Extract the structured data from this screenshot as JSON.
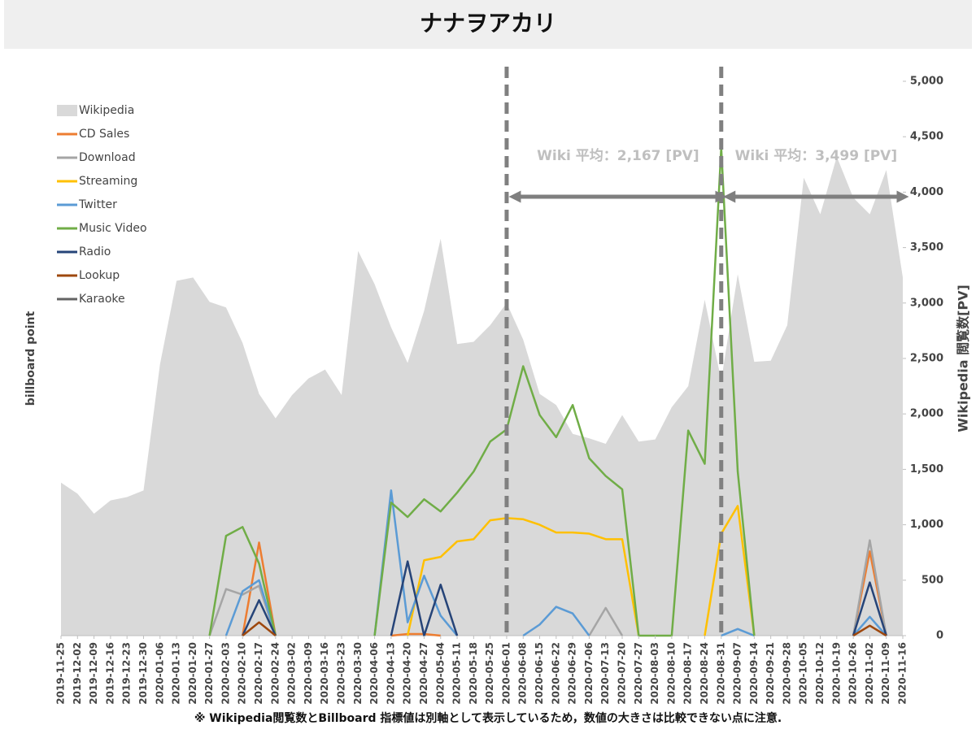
{
  "chart_data": {
    "type": "line",
    "title": "ナナヲアカリ",
    "y_label": "billboard point",
    "y2_label": "Wikipedia 閲覧数[PV]",
    "footnote": "※ Wikipedia閲覧数とBillboard 指標値は別軸として表示しているため，数値の大きさは比較できない点に注意.",
    "categories": [
      "2019-11-25",
      "2019-12-02",
      "2019-12-09",
      "2019-12-16",
      "2019-12-23",
      "2019-12-30",
      "2020-01-06",
      "2020-01-13",
      "2020-01-20",
      "2020-01-27",
      "2020-02-03",
      "2020-02-10",
      "2020-02-17",
      "2020-02-24",
      "2020-03-02",
      "2020-03-09",
      "2020-03-16",
      "2020-03-23",
      "2020-03-30",
      "2020-04-06",
      "2020-04-13",
      "2020-04-20",
      "2020-04-27",
      "2020-05-04",
      "2020-05-11",
      "2020-05-18",
      "2020-05-25",
      "2020-06-01",
      "2020-06-08",
      "2020-06-15",
      "2020-06-22",
      "2020-06-29",
      "2020-07-06",
      "2020-07-13",
      "2020-07-20",
      "2020-07-27",
      "2020-08-03",
      "2020-08-10",
      "2020-08-17",
      "2020-08-24",
      "2020-08-31",
      "2020-09-07",
      "2020-09-14",
      "2020-09-21",
      "2020-09-28",
      "2020-10-05",
      "2020-10-12",
      "2020-10-19",
      "2020-10-26",
      "2020-11-02",
      "2020-11-09",
      "2020-11-16"
    ],
    "ylim": [
      0,
      5000
    ],
    "y2lim": [
      0,
      5000
    ],
    "y2ticks": [
      0,
      500,
      {
        "value": 1000,
        "label": "1,000"
      },
      {
        "value": 1500,
        "label": "1,500"
      },
      {
        "value": 2000,
        "label": "2,000"
      },
      {
        "value": 2500,
        "label": "2,500"
      },
      {
        "value": 3000,
        "label": "3,000"
      },
      {
        "value": 3500,
        "label": "3,500"
      },
      {
        "value": 4000,
        "label": "4,000"
      },
      {
        "value": 4500,
        "label": "4,500"
      },
      {
        "value": 5000,
        "label": "5,000"
      }
    ],
    "series": [
      {
        "name": "Wikipedia",
        "color": "#d9d9d9",
        "kind": "area",
        "axis": "y2",
        "values": [
          1380,
          1280,
          1100,
          1220,
          1250,
          1310,
          2450,
          3200,
          3230,
          3010,
          2960,
          2640,
          2180,
          1960,
          2170,
          2320,
          2400,
          2170,
          3470,
          3170,
          2780,
          2460,
          2930,
          3580,
          2630,
          2650,
          2800,
          3000,
          2670,
          2180,
          2080,
          1820,
          1780,
          1730,
          1990,
          1750,
          1770,
          2060,
          2250,
          3030,
          2300,
          3260,
          2470,
          2480,
          2800,
          4130,
          3800,
          4320,
          3950,
          3800,
          4200,
          3230
        ]
      },
      {
        "name": "CD Sales",
        "color": "#ed7d31",
        "values": [
          null,
          null,
          null,
          null,
          null,
          null,
          null,
          null,
          null,
          null,
          null,
          0,
          840,
          0,
          null,
          null,
          null,
          null,
          null,
          null,
          0,
          15,
          15,
          0,
          null,
          null,
          null,
          null,
          null,
          null,
          null,
          null,
          null,
          null,
          null,
          null,
          null,
          null,
          null,
          null,
          null,
          null,
          null,
          null,
          null,
          null,
          null,
          null,
          0,
          760,
          0,
          null
        ]
      },
      {
        "name": "Download",
        "color": "#a5a5a5",
        "values": [
          null,
          null,
          null,
          null,
          null,
          null,
          null,
          null,
          null,
          0,
          420,
          370,
          450,
          0,
          null,
          null,
          null,
          null,
          null,
          null,
          null,
          null,
          null,
          null,
          null,
          null,
          null,
          null,
          null,
          null,
          null,
          null,
          0,
          250,
          0,
          null,
          null,
          null,
          null,
          null,
          null,
          null,
          null,
          null,
          null,
          null,
          null,
          null,
          0,
          860,
          0,
          null
        ]
      },
      {
        "name": "Streaming",
        "color": "#ffc000",
        "values": [
          null,
          null,
          null,
          null,
          null,
          null,
          null,
          null,
          null,
          null,
          null,
          null,
          null,
          null,
          null,
          null,
          null,
          null,
          null,
          null,
          null,
          0,
          680,
          710,
          850,
          870,
          1040,
          1060,
          1050,
          1000,
          930,
          930,
          920,
          870,
          870,
          0,
          null,
          null,
          null,
          0,
          920,
          1170,
          0,
          null,
          null,
          null,
          null,
          null,
          null,
          null,
          null,
          null
        ]
      },
      {
        "name": "Twitter",
        "color": "#5b9bd5",
        "values": [
          null,
          null,
          null,
          null,
          null,
          null,
          null,
          null,
          null,
          null,
          0,
          400,
          500,
          0,
          null,
          null,
          null,
          null,
          null,
          0,
          1310,
          120,
          540,
          180,
          0,
          null,
          null,
          null,
          0,
          100,
          260,
          200,
          0,
          null,
          null,
          null,
          null,
          null,
          null,
          null,
          0,
          60,
          0,
          null,
          null,
          null,
          null,
          null,
          0,
          170,
          0,
          null
        ]
      },
      {
        "name": "Music Video",
        "color": "#70ad47",
        "values": [
          null,
          null,
          null,
          null,
          null,
          null,
          null,
          null,
          null,
          0,
          900,
          980,
          650,
          0,
          null,
          null,
          null,
          null,
          null,
          0,
          1200,
          1070,
          1230,
          1120,
          1290,
          1480,
          1750,
          1860,
          2430,
          1990,
          1790,
          2080,
          1600,
          1440,
          1320,
          0,
          0,
          0,
          1850,
          1550,
          4400,
          1480,
          0,
          null,
          null,
          null,
          null,
          null,
          null,
          null,
          null,
          null
        ]
      },
      {
        "name": "Radio",
        "color": "#264478",
        "values": [
          null,
          null,
          null,
          null,
          null,
          null,
          null,
          null,
          null,
          null,
          null,
          0,
          320,
          0,
          null,
          null,
          null,
          null,
          null,
          null,
          0,
          670,
          0,
          460,
          0,
          null,
          null,
          null,
          null,
          null,
          null,
          null,
          null,
          null,
          null,
          null,
          null,
          null,
          null,
          null,
          null,
          null,
          null,
          null,
          null,
          null,
          null,
          null,
          0,
          480,
          0,
          null
        ]
      },
      {
        "name": "Lookup",
        "color": "#9e480e",
        "values": [
          null,
          null,
          null,
          null,
          null,
          null,
          null,
          null,
          null,
          null,
          null,
          0,
          120,
          0,
          null,
          null,
          null,
          null,
          null,
          null,
          null,
          null,
          null,
          null,
          null,
          null,
          null,
          null,
          null,
          null,
          null,
          null,
          null,
          null,
          null,
          null,
          null,
          null,
          null,
          null,
          null,
          null,
          null,
          null,
          null,
          null,
          null,
          null,
          0,
          90,
          0,
          null
        ]
      },
      {
        "name": "Karaoke",
        "color": "#636363",
        "values": [
          null,
          null,
          null,
          null,
          null,
          null,
          null,
          null,
          null,
          null,
          null,
          null,
          null,
          null,
          null,
          null,
          null,
          null,
          null,
          null,
          null,
          null,
          null,
          null,
          null,
          null,
          null,
          null,
          null,
          null,
          null,
          null,
          null,
          null,
          null,
          null,
          null,
          null,
          null,
          null,
          null,
          null,
          null,
          null,
          null,
          null,
          null,
          null,
          null,
          null,
          null,
          null
        ]
      }
    ],
    "vlines": [
      "2020-06-01",
      "2020-08-31"
    ],
    "annotations": [
      {
        "text": "Wiki 平均：2,167 [PV]",
        "from": "2020-06-01",
        "to": "2020-08-31"
      },
      {
        "text": "Wiki 平均：3,499 [PV]",
        "from": "2020-08-31",
        "to": "2020-11-16"
      }
    ],
    "legend": "upper left"
  }
}
